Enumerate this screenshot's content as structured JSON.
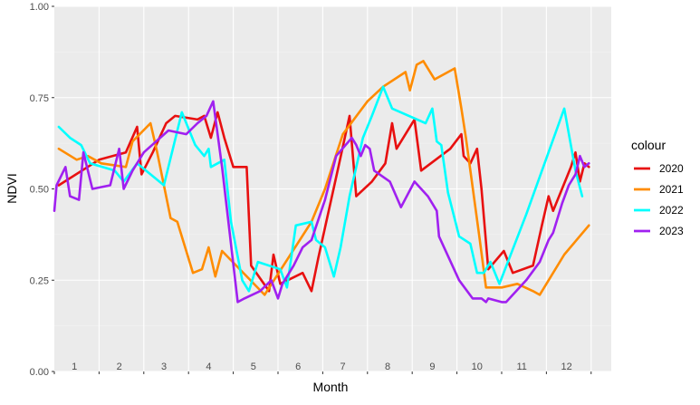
{
  "chart_data": {
    "type": "line",
    "xlabel": "Month",
    "ylabel": "NDVI",
    "xlim": [
      0,
      12.45
    ],
    "ylim": [
      0,
      1
    ],
    "yticks": [
      0,
      0.25,
      0.5,
      0.75,
      1
    ],
    "ytick_labels": [
      "0.00",
      "0.25",
      "0.50",
      "0.75",
      "1.00"
    ],
    "month_labels": [
      "1",
      "2",
      "3",
      "4",
      "5",
      "6",
      "7",
      "8",
      "9",
      "10",
      "11",
      "12"
    ],
    "grid": true,
    "legend": {
      "title": "colour",
      "placement": "right"
    },
    "series": [
      {
        "name": "2020",
        "color": "#e81010",
        "points": [
          [
            0.1,
            0.51
          ],
          [
            1.0,
            0.58
          ],
          [
            1.6,
            0.6
          ],
          [
            1.85,
            0.67
          ],
          [
            1.95,
            0.54
          ],
          [
            2.2,
            0.6
          ],
          [
            2.5,
            0.68
          ],
          [
            2.7,
            0.7
          ],
          [
            3.2,
            0.69
          ],
          [
            3.35,
            0.7
          ],
          [
            3.5,
            0.64
          ],
          [
            3.65,
            0.71
          ],
          [
            3.8,
            0.64
          ],
          [
            4.0,
            0.56
          ],
          [
            4.3,
            0.56
          ],
          [
            4.4,
            0.29
          ],
          [
            4.8,
            0.22
          ],
          [
            4.9,
            0.32
          ],
          [
            5.05,
            0.24
          ],
          [
            5.55,
            0.27
          ],
          [
            5.75,
            0.22
          ],
          [
            5.9,
            0.31
          ],
          [
            6.35,
            0.56
          ],
          [
            6.6,
            0.7
          ],
          [
            6.75,
            0.48
          ],
          [
            7.1,
            0.52
          ],
          [
            7.4,
            0.57
          ],
          [
            7.55,
            0.68
          ],
          [
            7.65,
            0.61
          ],
          [
            8.05,
            0.69
          ],
          [
            8.2,
            0.55
          ],
          [
            8.85,
            0.61
          ],
          [
            9.1,
            0.65
          ],
          [
            9.15,
            0.59
          ],
          [
            9.3,
            0.57
          ],
          [
            9.45,
            0.61
          ],
          [
            9.55,
            0.5
          ],
          [
            9.7,
            0.28
          ],
          [
            10.05,
            0.33
          ],
          [
            10.25,
            0.27
          ],
          [
            10.7,
            0.29
          ],
          [
            10.9,
            0.4
          ],
          [
            11.05,
            0.48
          ],
          [
            11.15,
            0.44
          ],
          [
            11.55,
            0.56
          ],
          [
            11.65,
            0.6
          ],
          [
            11.75,
            0.52
          ],
          [
            11.85,
            0.57
          ],
          [
            11.95,
            0.56
          ]
        ]
      },
      {
        "name": "2021",
        "color": "#ff8c00",
        "points": [
          [
            0.1,
            0.61
          ],
          [
            0.5,
            0.58
          ],
          [
            0.75,
            0.59
          ],
          [
            1.05,
            0.57
          ],
          [
            1.6,
            0.56
          ],
          [
            1.75,
            0.63
          ],
          [
            2.15,
            0.68
          ],
          [
            2.3,
            0.6
          ],
          [
            2.6,
            0.42
          ],
          [
            2.75,
            0.41
          ],
          [
            3.1,
            0.27
          ],
          [
            3.3,
            0.28
          ],
          [
            3.45,
            0.34
          ],
          [
            3.6,
            0.26
          ],
          [
            3.75,
            0.33
          ],
          [
            4.7,
            0.21
          ],
          [
            5.75,
            0.41
          ],
          [
            6.05,
            0.5
          ],
          [
            6.45,
            0.65
          ],
          [
            7.0,
            0.74
          ],
          [
            7.35,
            0.78
          ],
          [
            7.85,
            0.82
          ],
          [
            7.95,
            0.77
          ],
          [
            8.1,
            0.84
          ],
          [
            8.25,
            0.85
          ],
          [
            8.5,
            0.8
          ],
          [
            8.95,
            0.83
          ],
          [
            9.1,
            0.72
          ],
          [
            9.2,
            0.64
          ],
          [
            9.5,
            0.37
          ],
          [
            9.65,
            0.23
          ],
          [
            10.0,
            0.23
          ],
          [
            10.35,
            0.24
          ],
          [
            10.7,
            0.22
          ],
          [
            10.85,
            0.21
          ],
          [
            11.4,
            0.32
          ],
          [
            11.95,
            0.4
          ]
        ]
      },
      {
        "name": "2022",
        "color": "#00ffff",
        "points": [
          [
            0.1,
            0.67
          ],
          [
            0.35,
            0.64
          ],
          [
            0.6,
            0.62
          ],
          [
            0.8,
            0.57
          ],
          [
            1.35,
            0.55
          ],
          [
            1.55,
            0.52
          ],
          [
            1.85,
            0.57
          ],
          [
            2.45,
            0.51
          ],
          [
            2.85,
            0.71
          ],
          [
            3.15,
            0.62
          ],
          [
            3.35,
            0.59
          ],
          [
            3.45,
            0.61
          ],
          [
            3.5,
            0.56
          ],
          [
            3.8,
            0.58
          ],
          [
            3.95,
            0.41
          ],
          [
            4.2,
            0.25
          ],
          [
            4.35,
            0.22
          ],
          [
            4.55,
            0.3
          ],
          [
            5.05,
            0.28
          ],
          [
            5.2,
            0.23
          ],
          [
            5.4,
            0.4
          ],
          [
            5.75,
            0.41
          ],
          [
            5.85,
            0.36
          ],
          [
            6.05,
            0.34
          ],
          [
            6.25,
            0.26
          ],
          [
            6.4,
            0.34
          ],
          [
            6.6,
            0.48
          ],
          [
            6.9,
            0.64
          ],
          [
            7.1,
            0.7
          ],
          [
            7.35,
            0.78
          ],
          [
            7.55,
            0.72
          ],
          [
            8.3,
            0.68
          ],
          [
            8.45,
            0.72
          ],
          [
            8.55,
            0.63
          ],
          [
            8.65,
            0.62
          ],
          [
            8.8,
            0.49
          ],
          [
            9.05,
            0.37
          ],
          [
            9.3,
            0.35
          ],
          [
            9.45,
            0.27
          ],
          [
            9.6,
            0.27
          ],
          [
            9.75,
            0.3
          ],
          [
            9.95,
            0.24
          ],
          [
            10.55,
            0.43
          ],
          [
            11.4,
            0.72
          ],
          [
            11.65,
            0.55
          ],
          [
            11.8,
            0.48
          ]
        ]
      },
      {
        "name": "2023",
        "color": "#a020f0",
        "points": [
          [
            0.0,
            0.44
          ],
          [
            0.05,
            0.51
          ],
          [
            0.25,
            0.56
          ],
          [
            0.35,
            0.48
          ],
          [
            0.55,
            0.47
          ],
          [
            0.65,
            0.6
          ],
          [
            0.85,
            0.5
          ],
          [
            1.25,
            0.51
          ],
          [
            1.45,
            0.61
          ],
          [
            1.55,
            0.5
          ],
          [
            1.75,
            0.55
          ],
          [
            2.0,
            0.6
          ],
          [
            2.55,
            0.66
          ],
          [
            2.95,
            0.65
          ],
          [
            3.2,
            0.68
          ],
          [
            3.4,
            0.7
          ],
          [
            3.55,
            0.74
          ],
          [
            3.75,
            0.56
          ],
          [
            4.1,
            0.19
          ],
          [
            4.25,
            0.2
          ],
          [
            4.6,
            0.22
          ],
          [
            4.85,
            0.25
          ],
          [
            5.0,
            0.2
          ],
          [
            5.1,
            0.24
          ],
          [
            5.35,
            0.29
          ],
          [
            5.55,
            0.34
          ],
          [
            5.75,
            0.36
          ],
          [
            6.05,
            0.47
          ],
          [
            6.3,
            0.59
          ],
          [
            6.65,
            0.64
          ],
          [
            6.75,
            0.62
          ],
          [
            6.85,
            0.59
          ],
          [
            6.95,
            0.62
          ],
          [
            7.05,
            0.61
          ],
          [
            7.15,
            0.55
          ],
          [
            7.5,
            0.52
          ],
          [
            7.75,
            0.45
          ],
          [
            8.05,
            0.52
          ],
          [
            8.35,
            0.48
          ],
          [
            8.55,
            0.44
          ],
          [
            8.6,
            0.37
          ],
          [
            9.05,
            0.25
          ],
          [
            9.35,
            0.2
          ],
          [
            9.55,
            0.2
          ],
          [
            9.65,
            0.19
          ],
          [
            9.7,
            0.2
          ],
          [
            10.0,
            0.19
          ],
          [
            10.1,
            0.19
          ],
          [
            10.55,
            0.25
          ],
          [
            10.85,
            0.3
          ],
          [
            10.95,
            0.33
          ],
          [
            11.05,
            0.36
          ],
          [
            11.15,
            0.38
          ],
          [
            11.35,
            0.46
          ],
          [
            11.5,
            0.51
          ],
          [
            11.65,
            0.54
          ],
          [
            11.75,
            0.59
          ],
          [
            11.85,
            0.56
          ],
          [
            11.95,
            0.57
          ]
        ]
      }
    ]
  }
}
